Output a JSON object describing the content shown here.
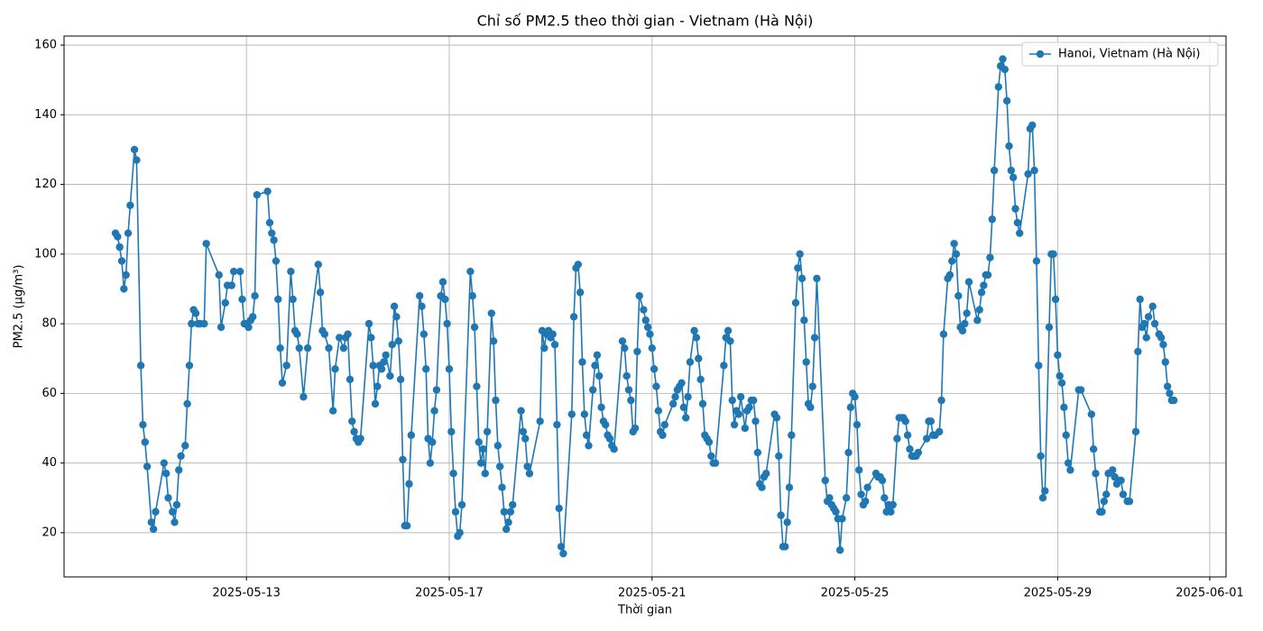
{
  "chart_data": {
    "type": "line",
    "title": "Chỉ số PM2.5 theo thời gian - Vietnam (Hà Nội)",
    "x_label": "Thời gian",
    "y_label": "PM2.5 (µg/m³)",
    "grid": true,
    "legend": "upper right",
    "xlim": [
      "2025-05-09 09:40",
      "2025-06-01 07:42"
    ],
    "xticks": [
      "2025-05-13",
      "2025-05-17",
      "2025-05-21",
      "2025-05-25",
      "2025-05-29",
      "2025-06-01"
    ],
    "ylim": [
      7.3,
      162.6
    ],
    "yticks": [
      20,
      40,
      60,
      80,
      100,
      120,
      140,
      160
    ],
    "x": [
      "2025-05-10 10:00",
      "2025-05-10 11:00",
      "2025-05-10 12:00",
      "2025-05-10 13:00",
      "2025-05-10 14:00",
      "2025-05-10 15:00",
      "2025-05-10 16:00",
      "2025-05-10 17:00",
      "2025-05-10 19:00",
      "2025-05-10 20:00",
      "2025-05-10 22:00",
      "2025-05-10 23:00",
      "2025-05-11 00:00",
      "2025-05-11 01:00",
      "2025-05-11 03:00",
      "2025-05-11 04:00",
      "2025-05-11 05:00",
      "2025-05-11 09:00",
      "2025-05-11 10:00",
      "2025-05-11 11:00",
      "2025-05-11 13:00",
      "2025-05-11 14:00",
      "2025-05-11 15:00",
      "2025-05-11 16:00",
      "2025-05-11 17:00",
      "2025-05-11 19:00",
      "2025-05-11 20:00",
      "2025-05-11 21:00",
      "2025-05-11 22:00",
      "2025-05-11 23:00",
      "2025-05-12 00:00",
      "2025-05-12 01:00",
      "2025-05-12 02:00",
      "2025-05-12 04:00",
      "2025-05-12 05:00",
      "2025-05-12 11:00",
      "2025-05-12 12:00",
      "2025-05-12 14:00",
      "2025-05-12 15:00",
      "2025-05-12 17:00",
      "2025-05-12 18:00",
      "2025-05-12 21:00",
      "2025-05-12 22:00",
      "2025-05-12 23:00",
      "2025-05-13 00:00",
      "2025-05-13 01:00",
      "2025-05-13 02:00",
      "2025-05-13 03:00",
      "2025-05-13 04:00",
      "2025-05-13 05:00",
      "2025-05-13 10:00",
      "2025-05-13 11:00",
      "2025-05-13 12:00",
      "2025-05-13 13:00",
      "2025-05-13 14:00",
      "2025-05-13 15:00",
      "2025-05-13 16:00",
      "2025-05-13 17:00",
      "2025-05-13 19:00",
      "2025-05-13 21:00",
      "2025-05-13 22:00",
      "2025-05-13 23:00",
      "2025-05-14 00:00",
      "2025-05-14 01:00",
      "2025-05-14 03:00",
      "2025-05-14 05:00",
      "2025-05-14 10:00",
      "2025-05-14 11:00",
      "2025-05-14 12:00",
      "2025-05-14 13:00",
      "2025-05-14 15:00",
      "2025-05-14 17:00",
      "2025-05-14 18:00",
      "2025-05-14 20:00",
      "2025-05-14 22:00",
      "2025-05-14 23:00",
      "2025-05-15 00:00",
      "2025-05-15 01:00",
      "2025-05-15 02:00",
      "2025-05-15 03:00",
      "2025-05-15 04:00",
      "2025-05-15 05:00",
      "2025-05-15 06:00",
      "2025-05-15 10:00",
      "2025-05-15 11:00",
      "2025-05-15 12:00",
      "2025-05-15 13:00",
      "2025-05-15 14:00",
      "2025-05-15 15:00",
      "2025-05-15 16:00",
      "2025-05-15 17:00",
      "2025-05-15 18:00",
      "2025-05-15 20:00",
      "2025-05-15 21:00",
      "2025-05-15 22:00",
      "2025-05-15 23:00",
      "2025-05-16 00:00",
      "2025-05-16 01:00",
      "2025-05-16 02:00",
      "2025-05-16 03:00",
      "2025-05-16 04:00",
      "2025-05-16 05:00",
      "2025-05-16 06:00",
      "2025-05-16 10:00",
      "2025-05-16 11:00",
      "2025-05-16 12:00",
      "2025-05-16 13:00",
      "2025-05-16 14:00",
      "2025-05-16 15:00",
      "2025-05-16 16:00",
      "2025-05-16 17:00",
      "2025-05-16 18:00",
      "2025-05-16 20:00",
      "2025-05-16 21:00",
      "2025-05-16 22:00",
      "2025-05-16 23:00",
      "2025-05-17 00:00",
      "2025-05-17 01:00",
      "2025-05-17 02:00",
      "2025-05-17 03:00",
      "2025-05-17 04:00",
      "2025-05-17 05:00",
      "2025-05-17 06:00",
      "2025-05-17 10:00",
      "2025-05-17 11:00",
      "2025-05-17 12:00",
      "2025-05-17 13:00",
      "2025-05-17 14:00",
      "2025-05-17 15:00",
      "2025-05-17 16:00",
      "2025-05-17 17:00",
      "2025-05-17 18:00",
      "2025-05-17 20:00",
      "2025-05-17 21:00",
      "2025-05-17 22:00",
      "2025-05-17 23:00",
      "2025-05-18 00:00",
      "2025-05-18 01:00",
      "2025-05-18 02:00",
      "2025-05-18 03:00",
      "2025-05-18 04:00",
      "2025-05-18 05:00",
      "2025-05-18 06:00",
      "2025-05-18 10:00",
      "2025-05-18 11:00",
      "2025-05-18 12:00",
      "2025-05-18 13:00",
      "2025-05-18 14:00",
      "2025-05-18 19:00",
      "2025-05-18 20:00",
      "2025-05-18 21:00",
      "2025-05-18 22:00",
      "2025-05-18 23:00",
      "2025-05-19 00:00",
      "2025-05-19 01:00",
      "2025-05-19 02:00",
      "2025-05-19 03:00",
      "2025-05-19 04:00",
      "2025-05-19 05:00",
      "2025-05-19 06:00",
      "2025-05-19 10:00",
      "2025-05-19 11:00",
      "2025-05-19 12:00",
      "2025-05-19 13:00",
      "2025-05-19 14:00",
      "2025-05-19 15:00",
      "2025-05-19 16:00",
      "2025-05-19 17:00",
      "2025-05-19 18:00",
      "2025-05-19 20:00",
      "2025-05-19 21:00",
      "2025-05-19 22:00",
      "2025-05-19 23:00",
      "2025-05-20 00:00",
      "2025-05-20 01:00",
      "2025-05-20 02:00",
      "2025-05-20 03:00",
      "2025-05-20 04:00",
      "2025-05-20 05:00",
      "2025-05-20 06:00",
      "2025-05-20 10:00",
      "2025-05-20 11:00",
      "2025-05-20 12:00",
      "2025-05-20 13:00",
      "2025-05-20 14:00",
      "2025-05-20 15:00",
      "2025-05-20 16:00",
      "2025-05-20 17:00",
      "2025-05-20 18:00",
      "2025-05-20 20:00",
      "2025-05-20 21:00",
      "2025-05-20 22:00",
      "2025-05-20 23:00",
      "2025-05-21 00:00",
      "2025-05-21 01:00",
      "2025-05-21 02:00",
      "2025-05-21 03:00",
      "2025-05-21 04:00",
      "2025-05-21 05:00",
      "2025-05-21 06:00",
      "2025-05-21 10:00",
      "2025-05-21 11:00",
      "2025-05-21 12:00",
      "2025-05-21 13:00",
      "2025-05-21 14:00",
      "2025-05-21 15:00",
      "2025-05-21 16:00",
      "2025-05-21 17:00",
      "2025-05-21 18:00",
      "2025-05-21 20:00",
      "2025-05-21 21:00",
      "2025-05-21 22:00",
      "2025-05-21 23:00",
      "2025-05-22 00:00",
      "2025-05-22 01:00",
      "2025-05-22 02:00",
      "2025-05-22 03:00",
      "2025-05-22 04:00",
      "2025-05-22 05:00",
      "2025-05-22 06:00",
      "2025-05-22 10:00",
      "2025-05-22 11:00",
      "2025-05-22 12:00",
      "2025-05-22 13:00",
      "2025-05-22 14:00",
      "2025-05-22 15:00",
      "2025-05-22 16:00",
      "2025-05-22 17:00",
      "2025-05-22 18:00",
      "2025-05-22 20:00",
      "2025-05-22 21:00",
      "2025-05-22 22:00",
      "2025-05-22 23:00",
      "2025-05-23 00:00",
      "2025-05-23 01:00",
      "2025-05-23 02:00",
      "2025-05-23 03:00",
      "2025-05-23 04:00",
      "2025-05-23 05:00",
      "2025-05-23 06:00",
      "2025-05-23 10:00",
      "2025-05-23 11:00",
      "2025-05-23 12:00",
      "2025-05-23 13:00",
      "2025-05-23 14:00",
      "2025-05-23 15:00",
      "2025-05-23 16:00",
      "2025-05-23 17:00",
      "2025-05-23 18:00",
      "2025-05-23 20:00",
      "2025-05-23 21:00",
      "2025-05-23 22:00",
      "2025-05-23 23:00",
      "2025-05-24 00:00",
      "2025-05-24 01:00",
      "2025-05-24 02:00",
      "2025-05-24 03:00",
      "2025-05-24 04:00",
      "2025-05-24 05:00",
      "2025-05-24 06:00",
      "2025-05-24 10:00",
      "2025-05-24 11:00",
      "2025-05-24 12:00",
      "2025-05-24 13:00",
      "2025-05-24 14:00",
      "2025-05-24 15:00",
      "2025-05-24 16:00",
      "2025-05-24 17:00",
      "2025-05-24 18:00",
      "2025-05-24 20:00",
      "2025-05-24 21:00",
      "2025-05-24 22:00",
      "2025-05-24 23:00",
      "2025-05-25 00:00",
      "2025-05-25 01:00",
      "2025-05-25 02:00",
      "2025-05-25 03:00",
      "2025-05-25 04:00",
      "2025-05-25 05:00",
      "2025-05-25 06:00",
      "2025-05-25 10:00",
      "2025-05-25 11:00",
      "2025-05-25 12:00",
      "2025-05-25 13:00",
      "2025-05-25 14:00",
      "2025-05-25 15:00",
      "2025-05-25 16:00",
      "2025-05-25 17:00",
      "2025-05-25 18:00",
      "2025-05-25 20:00",
      "2025-05-25 21:00",
      "2025-05-25 22:00",
      "2025-05-25 23:00",
      "2025-05-26 00:00",
      "2025-05-26 01:00",
      "2025-05-26 02:00",
      "2025-05-26 03:00",
      "2025-05-26 04:00",
      "2025-05-26 05:00",
      "2025-05-26 06:00",
      "2025-05-26 10:00",
      "2025-05-26 11:00",
      "2025-05-26 12:00",
      "2025-05-26 13:00",
      "2025-05-26 14:00",
      "2025-05-26 16:00",
      "2025-05-26 17:00",
      "2025-05-26 18:00",
      "2025-05-26 20:00",
      "2025-05-26 21:00",
      "2025-05-26 22:00",
      "2025-05-26 23:00",
      "2025-05-27 00:00",
      "2025-05-27 01:00",
      "2025-05-27 02:00",
      "2025-05-27 03:00",
      "2025-05-27 04:00",
      "2025-05-27 05:00",
      "2025-05-27 06:00",
      "2025-05-27 10:00",
      "2025-05-27 11:00",
      "2025-05-27 12:00",
      "2025-05-27 13:00",
      "2025-05-27 14:00",
      "2025-05-27 15:00",
      "2025-05-27 16:00",
      "2025-05-27 17:00",
      "2025-05-27 18:00",
      "2025-05-27 20:00",
      "2025-05-27 21:00",
      "2025-05-27 22:00",
      "2025-05-27 23:00",
      "2025-05-28 00:00",
      "2025-05-28 01:00",
      "2025-05-28 02:00",
      "2025-05-28 03:00",
      "2025-05-28 04:00",
      "2025-05-28 05:00",
      "2025-05-28 06:00",
      "2025-05-28 10:00",
      "2025-05-28 11:00",
      "2025-05-28 12:00",
      "2025-05-28 13:00",
      "2025-05-28 14:00",
      "2025-05-28 15:00",
      "2025-05-28 16:00",
      "2025-05-28 17:00",
      "2025-05-28 18:00",
      "2025-05-28 20:00",
      "2025-05-28 21:00",
      "2025-05-28 22:00",
      "2025-05-28 23:00",
      "2025-05-29 00:00",
      "2025-05-29 01:00",
      "2025-05-29 02:00",
      "2025-05-29 03:00",
      "2025-05-29 04:00",
      "2025-05-29 05:00",
      "2025-05-29 06:00",
      "2025-05-29 10:00",
      "2025-05-29 11:00",
      "2025-05-29 16:00",
      "2025-05-29 17:00",
      "2025-05-29 18:00",
      "2025-05-29 20:00",
      "2025-05-29 21:00",
      "2025-05-29 22:00",
      "2025-05-29 23:00",
      "2025-05-30 00:00",
      "2025-05-30 02:00",
      "2025-05-30 03:00",
      "2025-05-30 04:00",
      "2025-05-30 05:00",
      "2025-05-30 06:00",
      "2025-05-30 07:00",
      "2025-05-30 09:00",
      "2025-05-30 10:00",
      "2025-05-30 13:00",
      "2025-05-30 14:00",
      "2025-05-30 15:00",
      "2025-05-30 16:00",
      "2025-05-30 17:00",
      "2025-05-30 18:00",
      "2025-05-30 19:00",
      "2025-05-30 21:00",
      "2025-05-30 22:00",
      "2025-05-31 00:00",
      "2025-05-31 01:00",
      "2025-05-31 02:00",
      "2025-05-31 03:00",
      "2025-05-31 04:00",
      "2025-05-31 05:00",
      "2025-05-31 06:00",
      "2025-05-31 07:00"
    ],
    "series": [
      {
        "name": "Hanoi, Vietnam (Hà Nội)",
        "color": "#1f77b4",
        "values": [
          106,
          105,
          102,
          98,
          90,
          94,
          106,
          114,
          130,
          127,
          68,
          51,
          46,
          39,
          23,
          21,
          26,
          40,
          37,
          30,
          26,
          23,
          28,
          38,
          42,
          45,
          57,
          68,
          80,
          84,
          83,
          80,
          80,
          80,
          103,
          94,
          79,
          86,
          91,
          91,
          95,
          95,
          87,
          80,
          80,
          79,
          81,
          82,
          88,
          117,
          118,
          109,
          106,
          104,
          98,
          87,
          73,
          63,
          68,
          95,
          87,
          78,
          77,
          73,
          59,
          73,
          97,
          89,
          78,
          77,
          73,
          55,
          67,
          76,
          73,
          76,
          77,
          64,
          52,
          49,
          47,
          46,
          47,
          80,
          76,
          68,
          57,
          62,
          68,
          67,
          69,
          71,
          65,
          74,
          85,
          82,
          75,
          64,
          41,
          22,
          22,
          34,
          48,
          88,
          85,
          77,
          67,
          47,
          40,
          46,
          55,
          61,
          88,
          92,
          87,
          80,
          67,
          49,
          37,
          26,
          19,
          20,
          28,
          95,
          88,
          79,
          62,
          46,
          40,
          44,
          37,
          49,
          83,
          75,
          58,
          45,
          39,
          33,
          26,
          21,
          23,
          26,
          28,
          55,
          49,
          47,
          39,
          37,
          52,
          78,
          73,
          77,
          78,
          76,
          77,
          74,
          51,
          27,
          16,
          14,
          54,
          82,
          96,
          97,
          89,
          69,
          54,
          48,
          45,
          61,
          68,
          71,
          65,
          56,
          52,
          51,
          48,
          47,
          45,
          44,
          75,
          73,
          65,
          61,
          58,
          49,
          50,
          72,
          88,
          84,
          81,
          79,
          77,
          73,
          67,
          62,
          55,
          49,
          48,
          51,
          57,
          59,
          61,
          62,
          63,
          56,
          53,
          59,
          69,
          78,
          76,
          70,
          64,
          57,
          48,
          47,
          46,
          42,
          40,
          40,
          68,
          76,
          78,
          75,
          58,
          51,
          55,
          54,
          59,
          50,
          55,
          56,
          58,
          58,
          52,
          43,
          34,
          33,
          36,
          37,
          54,
          53,
          42,
          25,
          16,
          16,
          23,
          33,
          48,
          86,
          96,
          100,
          93,
          81,
          69,
          57,
          56,
          62,
          76,
          93,
          35,
          29,
          30,
          28,
          27,
          26,
          24,
          15,
          24,
          30,
          43,
          56,
          60,
          59,
          51,
          38,
          31,
          28,
          29,
          33,
          37,
          36,
          36,
          35,
          30,
          26,
          28,
          26,
          28,
          47,
          53,
          53,
          53,
          52,
          48,
          44,
          42,
          42,
          42,
          43,
          47,
          52,
          52,
          48,
          48,
          49,
          58,
          77,
          93,
          94,
          98,
          103,
          100,
          88,
          79,
          78,
          80,
          83,
          92,
          81,
          84,
          89,
          91,
          94,
          94,
          99,
          110,
          124,
          148,
          154,
          156,
          153,
          144,
          131,
          124,
          122,
          113,
          109,
          106,
          123,
          136,
          137,
          124,
          98,
          68,
          42,
          30,
          32,
          79,
          100,
          100,
          87,
          71,
          65,
          63,
          56,
          48,
          40,
          38,
          61,
          61,
          54,
          44,
          37,
          26,
          26,
          29,
          31,
          37,
          38,
          36,
          34,
          35,
          35,
          31,
          29,
          29,
          49,
          72,
          87,
          79,
          80,
          76,
          82,
          85,
          80,
          77,
          76,
          74,
          69,
          62,
          60,
          58,
          58
        ]
      }
    ]
  }
}
